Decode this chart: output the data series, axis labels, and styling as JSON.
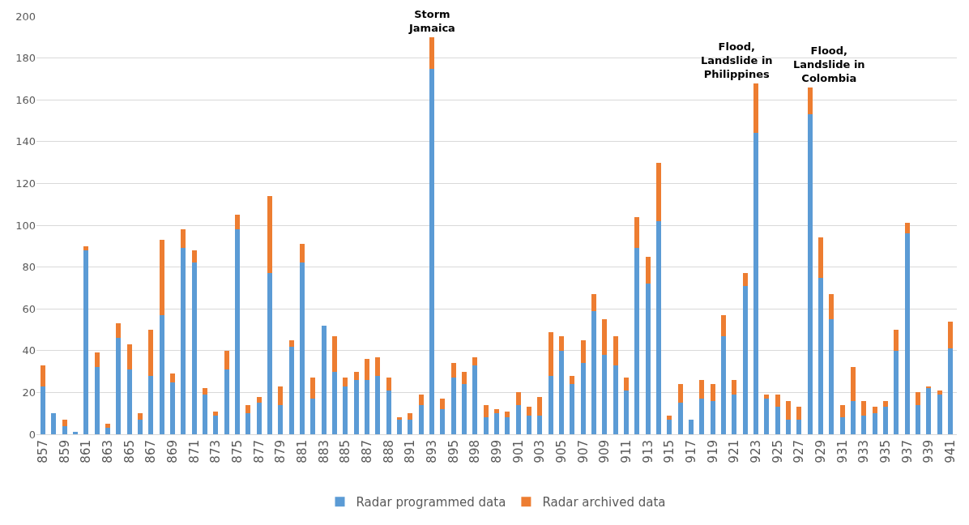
{
  "chart_data": {
    "type": "bar",
    "stacked": true,
    "categories": [
      "857",
      null,
      "859",
      null,
      "861",
      null,
      "863",
      null,
      "865",
      null,
      "867",
      null,
      "869",
      null,
      "871",
      null,
      "873",
      null,
      "875",
      null,
      "877",
      null,
      "879",
      null,
      "881",
      null,
      "883",
      null,
      "885",
      null,
      "887",
      null,
      "888",
      null,
      "891",
      null,
      "893",
      null,
      "895",
      null,
      "898",
      null,
      "899",
      null,
      "901",
      null,
      "903",
      null,
      "905",
      null,
      "907",
      null,
      "909",
      null,
      "911",
      null,
      "913",
      null,
      "915",
      null,
      "917",
      null,
      "919",
      null,
      "921",
      null,
      "923",
      null,
      "925",
      null,
      "927",
      null,
      "929",
      null,
      "931",
      null,
      "933",
      null,
      "935",
      null,
      "937",
      null,
      "939",
      null,
      "941"
    ],
    "series": [
      {
        "name": "Radar programmed data",
        "color": "#5b9bd5",
        "values": [
          23,
          10,
          4,
          1,
          88,
          32,
          3,
          46,
          31,
          7,
          28,
          57,
          25,
          89,
          82,
          19,
          9,
          31,
          98,
          10,
          15,
          77,
          14,
          42,
          82,
          17,
          52,
          30,
          23,
          26,
          26,
          28,
          21,
          7,
          7,
          14,
          175,
          12,
          27,
          24,
          33,
          8,
          10,
          8,
          14,
          9,
          9,
          28,
          40,
          24,
          34,
          59,
          38,
          33,
          21,
          89,
          72,
          102,
          7,
          15,
          7,
          17,
          16,
          47,
          19,
          71,
          144,
          17,
          13,
          7,
          7,
          153,
          75,
          55,
          8,
          16,
          9,
          10,
          13,
          40,
          96,
          14,
          22,
          19,
          41
        ]
      },
      {
        "name": "Radar archived data",
        "color": "#ed7d31",
        "values": [
          10,
          0,
          3,
          0,
          2,
          7,
          2,
          7,
          12,
          3,
          22,
          36,
          4,
          9,
          6,
          3,
          2,
          9,
          7,
          4,
          3,
          37,
          9,
          3,
          9,
          10,
          0,
          17,
          4,
          4,
          10,
          9,
          6,
          1,
          3,
          5,
          15,
          5,
          7,
          6,
          4,
          6,
          2,
          3,
          6,
          4,
          9,
          21,
          7,
          4,
          11,
          8,
          17,
          14,
          6,
          15,
          13,
          28,
          2,
          9,
          0,
          9,
          8,
          10,
          7,
          6,
          24,
          2,
          6,
          9,
          6,
          13,
          19,
          12,
          6,
          16,
          7,
          3,
          3,
          10,
          5,
          6,
          1,
          2,
          13
        ]
      }
    ],
    "ylim": [
      0,
      200
    ],
    "yticks": [
      0,
      20,
      40,
      60,
      80,
      100,
      120,
      140,
      160,
      180,
      200
    ],
    "grid": "y",
    "legend": "bottom",
    "annotations": [
      "Storm Jamaica",
      "Flood, Landslide in Philippines",
      "Flood, Landslide in Colombia"
    ]
  }
}
